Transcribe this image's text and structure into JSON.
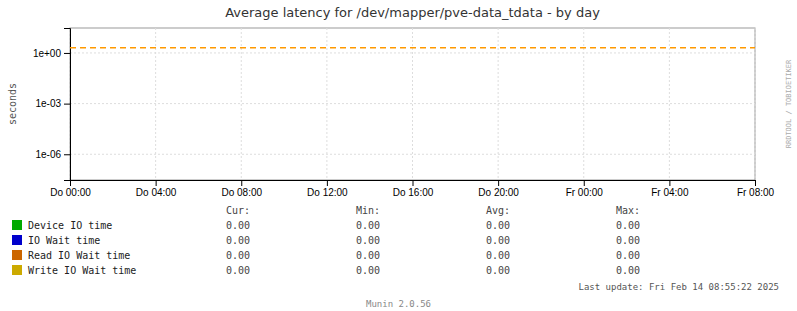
{
  "chart_data": {
    "type": "line",
    "title": "Average latency for /dev/mapper/pve-data_tdata - by day",
    "ylabel": "seconds",
    "log": "y",
    "grid": true,
    "xlim": [
      0,
      32
    ],
    "xticks": [
      {
        "value": 0,
        "label": "Do 00:00"
      },
      {
        "value": 4,
        "label": "Do 04:00"
      },
      {
        "value": 8,
        "label": "Do 08:00"
      },
      {
        "value": 12,
        "label": "Do 12:00"
      },
      {
        "value": 16,
        "label": "Do 16:00"
      },
      {
        "value": 20,
        "label": "Do 20:00"
      },
      {
        "value": 24,
        "label": "Fr 00:00"
      },
      {
        "value": 28,
        "label": "Fr 04:00"
      },
      {
        "value": 32,
        "label": "Fr 08:00"
      }
    ],
    "ylim": [
      3e-08,
      30
    ],
    "yticks": [
      {
        "value": 1e-06,
        "label": "1e-06"
      },
      {
        "value": 0.001,
        "label": "1e-03"
      },
      {
        "value": 1,
        "label": "1e+00"
      }
    ],
    "reference_line": {
      "value": 2.0,
      "color": "#ff9900",
      "line_style": "dashed"
    },
    "summary_columns": [
      "Cur:",
      "Min:",
      "Avg:",
      "Max:"
    ],
    "series": [
      {
        "name": "Device IO time",
        "color": "#00aa00",
        "summary": [
          "0.00",
          "0.00",
          "0.00",
          "0.00"
        ]
      },
      {
        "name": "IO Wait time",
        "color": "#0000cc",
        "summary": [
          "0.00",
          "0.00",
          "0.00",
          "0.00"
        ]
      },
      {
        "name": "Read IO Wait time",
        "color": "#cc6600",
        "summary": [
          "0.00",
          "0.00",
          "0.00",
          "0.00"
        ]
      },
      {
        "name": "Write IO Wait time",
        "color": "#ccaa00",
        "summary": [
          "0.00",
          "0.00",
          "0.00",
          "0.00"
        ]
      }
    ],
    "annotations": [
      "Munin 2.0.56",
      "Last update: Fri Feb 14 08:55:22 2025",
      "RRDTOOL / TOBIOETIKER"
    ]
  }
}
